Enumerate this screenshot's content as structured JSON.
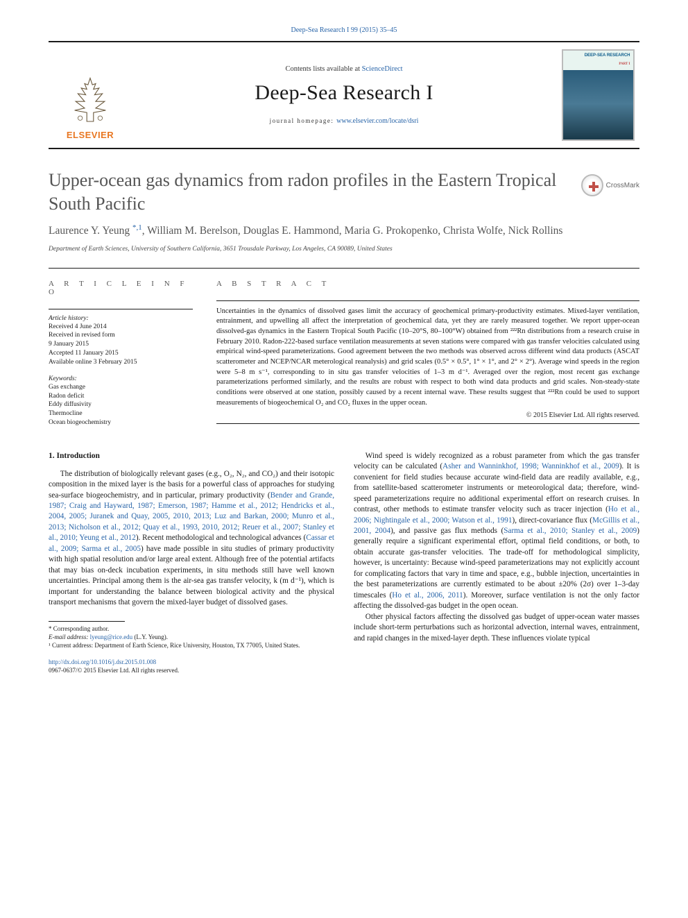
{
  "top_link": "Deep-Sea Research I 99 (2015) 35–45",
  "header": {
    "contents_prefix": "Contents lists available at ",
    "contents_link": "ScienceDirect",
    "journal_title": "Deep-Sea Research I",
    "homepage_prefix": "journal homepage: ",
    "homepage_link": "www.elsevier.com/locate/dsri",
    "publisher": "ELSEVIER",
    "cover_label_line1": "DEEP-SEA RESEARCH",
    "cover_label_part": "PART I"
  },
  "crossmark_label": "CrossMark",
  "article": {
    "title": "Upper-ocean gas dynamics from radon profiles in the Eastern Tropical South Pacific",
    "authors_html": "Laurence Y. Yeung <span class='corr'>*,1</span>, William M. Berelson, Douglas E. Hammond, Maria G. Prokopenko, Christa Wolfe, Nick Rollins",
    "affiliation": "Department of Earth Sciences, University of Southern California, 3651 Trousdale Parkway, Los Angeles, CA 90089, United States"
  },
  "info": {
    "heading": "A R T I C L E  I N F O",
    "history_label": "Article history:",
    "history": [
      "Received 4 June 2014",
      "Received in revised form",
      "9 January 2015",
      "Accepted 11 January 2015",
      "Available online 3 February 2015"
    ],
    "keywords_label": "Keywords:",
    "keywords": [
      "Gas exchange",
      "Radon deficit",
      "Eddy diffusivity",
      "Thermocline",
      "Ocean biogeochemistry"
    ]
  },
  "abstract": {
    "heading": "A B S T R A C T",
    "text": "Uncertainties in the dynamics of dissolved gases limit the accuracy of geochemical primary-productivity estimates. Mixed-layer ventilation, entrainment, and upwelling all affect the interpretation of geochemical data, yet they are rarely measured together. We report upper-ocean dissolved-gas dynamics in the Eastern Tropical South Pacific (10–20°S, 80–100°W) obtained from ²²²Rn distributions from a research cruise in February 2010. Radon-222-based surface ventilation measurements at seven stations were compared with gas transfer velocities calculated using empirical wind-speed parameterizations. Good agreement between the two methods was observed across different wind data products (ASCAT scatterometer and NCEP/NCAR meterological reanalysis) and grid scales (0.5° × 0.5°, 1° × 1°, and 2° × 2°). Average wind speeds in the region were 5–8 m s⁻¹, corresponding to in situ gas transfer velocities of 1–3 m d⁻¹. Averaged over the region, most recent gas exchange parameterizations performed similarly, and the results are robust with respect to both wind data products and grid scales. Non-steady-state conditions were observed at one station, possibly caused by a recent internal wave. These results suggest that ²²²Rn could be used to support measurements of biogeochemical O₂ and CO₂ fluxes in the upper ocean.",
    "copyright": "© 2015 Elsevier Ltd. All rights reserved."
  },
  "section1": {
    "heading": "1.  Introduction",
    "p1_pre": "The distribution of biologically relevant gases (e.g., O₂, N₂, and CO₂) and their isotopic composition in the mixed layer is the basis for a powerful class of approaches for studying sea-surface biogeochemistry, and in particular, primary productivity (",
    "p1_ref1": "Bender and Grande, 1987; Craig and Hayward, 1987; Emerson, 1987; Hamme et al., 2012; Hendricks et al., 2004, 2005; Juranek and Quay, 2005, 2010, 2013; Luz and Barkan, 2000; Munro et al., 2013; Nicholson et al., 2012; Quay et al., 1993, 2010, 2012; Reuer et al., 2007; Stanley et al., 2010; Yeung et al., 2012",
    "p1_mid": "). Recent methodological and technological advances (",
    "p1_ref2": "Cassar et al., 2009; Sarma et al., 2005",
    "p1_post": ") have made possible in situ studies of primary productivity with high spatial resolution and/or large areal extent. Although free of the potential artifacts that may bias on-deck incubation experiments, in situ methods still have well known uncertainties. Principal among them is the air-sea gas transfer velocity, k (m d⁻¹), which is important for understanding the balance between biological activity and the physical transport mechanisms that govern the mixed-layer budget of dissolved gases.",
    "p2_pre": "Wind speed is widely recognized as a robust parameter from which the gas transfer velocity can be calculated (",
    "p2_ref1": "Asher and Wanninkhof, 1998; Wanninkhof et al., 2009",
    "p2_mid1": "). It is convenient for field studies because accurate wind-field data are readily available, e.g., from satellite-based scatterometer instruments or meteorological data; therefore, wind-speed parameterizations require no additional experimental effort on research cruises. In contrast, other methods to estimate transfer velocity such as tracer injection (",
    "p2_ref2": "Ho et al., 2006; Nightingale et al., 2000; Watson et al., 1991",
    "p2_mid2": "), direct-covariance flux (",
    "p2_ref3": "McGillis et al., 2001, 2004",
    "p2_mid3": "), and passive gas flux methods (",
    "p2_ref4": "Sarma et al., 2010; Stanley et al., 2009",
    "p2_mid4": ") generally require a significant experimental effort, optimal field conditions, or both, to obtain accurate gas-transfer velocities. The trade-off for methodological simplicity, however, is uncertainty: Because wind-speed parameterizations may not explicitly account for complicating factors that vary in time and space, e.g., bubble injection, uncertainties in the best parameterizations are currently estimated to be about ±20% (2σ) over 1–3-day timescales (",
    "p2_ref5": "Ho et al., 2006, 2011",
    "p2_post": "). Moreover, surface ventilation is not the only factor affecting the dissolved-gas budget in the open ocean.",
    "p3": "Other physical factors affecting the dissolved gas budget of upper-ocean water masses include short-term perturbations such as horizontal advection, internal waves, entrainment, and rapid changes in the mixed-layer depth. These influences violate typical"
  },
  "footnotes": {
    "corr_label": "* Corresponding author.",
    "email_label": "E-mail address: ",
    "email": "lyeung@rice.edu",
    "email_owner": " (L.Y. Yeung).",
    "note1": "¹ Current address: Department of Earth Science, Rice University, Houston, TX 77005, United States.",
    "doi": "http://dx.doi.org/10.1016/j.dsr.2015.01.008",
    "issn_line": "0967-0637/© 2015 Elsevier Ltd. All rights reserved."
  },
  "colors": {
    "link": "#2864a8",
    "elsevier_orange": "#e87722",
    "text": "#1a1a1a",
    "title_gray": "#555555"
  },
  "typography": {
    "journal_title_pt": 30,
    "article_title_pt": 26,
    "authors_pt": 15.5,
    "body_pt": 11.2,
    "abstract_pt": 10.5,
    "small_pt": 9.5
  }
}
